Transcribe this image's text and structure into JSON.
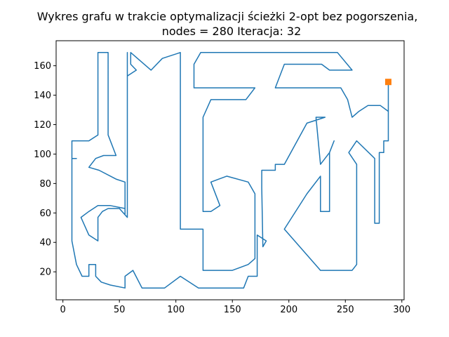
{
  "chart_data": {
    "type": "line",
    "title": "Wykres grafu w trakcie optymalizacji ścieżki 2-opt bez pogorszenia,",
    "subtitle": "nodes = 280 Iteracja: 32",
    "xlabel": "",
    "ylabel": "",
    "xlim": [
      -6,
      302
    ],
    "ylim": [
      1,
      177
    ],
    "grid": false,
    "x_ticks": [
      0,
      50,
      100,
      150,
      200,
      250,
      300
    ],
    "y_ticks": [
      20,
      40,
      60,
      80,
      100,
      120,
      140,
      160
    ],
    "colors": {
      "path": "#1f77b4",
      "marker": "#ff7f0e"
    },
    "series": [
      {
        "values_xy": [
          [
            288,
            149
          ],
          [
            288,
            129
          ],
          [
            281,
            133
          ],
          [
            270,
            133
          ],
          [
            262,
            129
          ],
          [
            256,
            125
          ],
          [
            252,
            137
          ],
          [
            246,
            145
          ],
          [
            236,
            145
          ],
          [
            188,
            145
          ],
          [
            196,
            161
          ],
          [
            229,
            161
          ],
          [
            236,
            157
          ],
          [
            256,
            157
          ],
          [
            243,
            169
          ],
          [
            122,
            169
          ],
          [
            116,
            161
          ],
          [
            116,
            145
          ],
          [
            170,
            145
          ],
          [
            162,
            137
          ],
          [
            131,
            137
          ],
          [
            124,
            125
          ],
          [
            124,
            61
          ],
          [
            131,
            61
          ],
          [
            139,
            65
          ],
          [
            131,
            81
          ],
          [
            145,
            85
          ],
          [
            164,
            81
          ],
          [
            170,
            73
          ],
          [
            170,
            29
          ],
          [
            164,
            25
          ],
          [
            150,
            21
          ],
          [
            124,
            21
          ],
          [
            124,
            49
          ],
          [
            104,
            49
          ],
          [
            104,
            57
          ],
          [
            104,
            169
          ],
          [
            88,
            165
          ],
          [
            78,
            157
          ],
          [
            60,
            169
          ],
          [
            60,
            161
          ],
          [
            65,
            157
          ],
          [
            57,
            153
          ],
          [
            57,
            169
          ],
          [
            57,
            57
          ],
          [
            50,
            63
          ],
          [
            40,
            63
          ],
          [
            35,
            61
          ],
          [
            31,
            57
          ],
          [
            31,
            41
          ],
          [
            23,
            45
          ],
          [
            16,
            57
          ],
          [
            23,
            61
          ],
          [
            31,
            65
          ],
          [
            42,
            65
          ],
          [
            55,
            63
          ],
          [
            55,
            59
          ],
          [
            55,
            81
          ],
          [
            47,
            83
          ],
          [
            32,
            89
          ],
          [
            23,
            91
          ],
          [
            29,
            97
          ],
          [
            36,
            99
          ],
          [
            47,
            99
          ],
          [
            40,
            113
          ],
          [
            40,
            169
          ],
          [
            31,
            169
          ],
          [
            31,
            113
          ],
          [
            23,
            109
          ],
          [
            16,
            109
          ],
          [
            8,
            109
          ],
          [
            8,
            101
          ],
          [
            8,
            97
          ],
          [
            12,
            97
          ],
          [
            8,
            97
          ],
          [
            8,
            41
          ],
          [
            12,
            25
          ],
          [
            17,
            17
          ],
          [
            23,
            17
          ],
          [
            23,
            25
          ],
          [
            29,
            25
          ],
          [
            29,
            17
          ],
          [
            34,
            13
          ],
          [
            42,
            11
          ],
          [
            55,
            9
          ],
          [
            55,
            17
          ],
          [
            62,
            21
          ],
          [
            70,
            9
          ],
          [
            90,
            9
          ],
          [
            104,
            17
          ],
          [
            120,
            9
          ],
          [
            160,
            9
          ],
          [
            164,
            17
          ],
          [
            172,
            17
          ],
          [
            172,
            21
          ],
          [
            172,
            45
          ],
          [
            180,
            41
          ],
          [
            177,
            37
          ],
          [
            176,
            77
          ],
          [
            176,
            89
          ],
          [
            188,
            89
          ],
          [
            188,
            93
          ],
          [
            196,
            93
          ],
          [
            216,
            121
          ],
          [
            232,
            125
          ],
          [
            224,
            125
          ],
          [
            228,
            93
          ],
          [
            236,
            101
          ],
          [
            240,
            109
          ],
          [
            236,
            101
          ],
          [
            236,
            61
          ],
          [
            228,
            61
          ],
          [
            228,
            85
          ],
          [
            216,
            73
          ],
          [
            196,
            49
          ],
          [
            228,
            21
          ],
          [
            236,
            21
          ],
          [
            248,
            21
          ],
          [
            256,
            21
          ],
          [
            260,
            25
          ],
          [
            260,
            93
          ],
          [
            253,
            101
          ],
          [
            260,
            109
          ],
          [
            276,
            97
          ],
          [
            276,
            53
          ],
          [
            280,
            53
          ],
          [
            280,
            93
          ],
          [
            280,
            101
          ],
          [
            284,
            101
          ],
          [
            284,
            109
          ],
          [
            288,
            109
          ],
          [
            288,
            149
          ]
        ]
      }
    ],
    "marker_point": [
      288,
      149
    ]
  }
}
